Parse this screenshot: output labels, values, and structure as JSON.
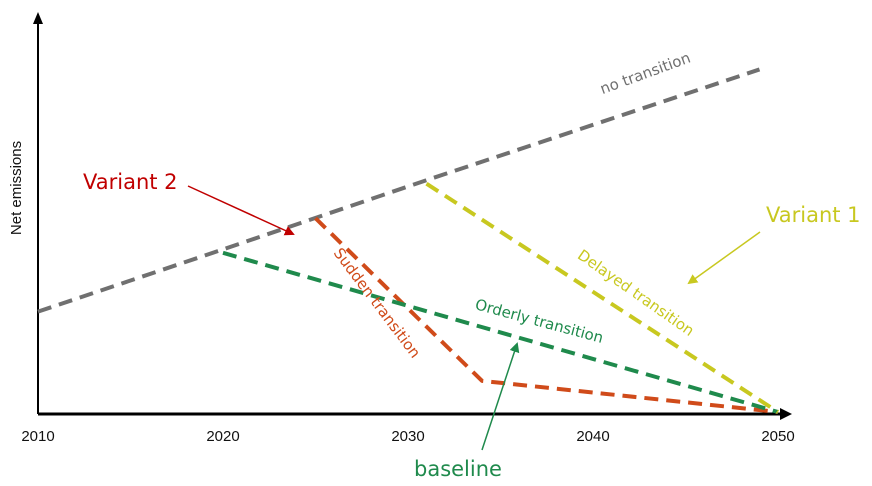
{
  "chart_data": {
    "type": "line",
    "ylabel": "Net emissions",
    "xlabel": "",
    "x_ticks": [
      2010,
      2020,
      2030,
      2040,
      2050
    ],
    "xlim": [
      2010,
      2050
    ],
    "ylim": [
      0,
      100
    ],
    "grid": false,
    "series": [
      {
        "label": "no transition",
        "color": "#707070",
        "points": [
          [
            2010,
            29
          ],
          [
            2020,
            47
          ],
          [
            2031,
            67
          ],
          [
            2049,
            99
          ]
        ]
      },
      {
        "label": "Sudden transition",
        "color": "#d04b1a",
        "points": [
          [
            2025,
            56
          ],
          [
            2034,
            9
          ],
          [
            2050,
            0
          ]
        ]
      },
      {
        "label": "Orderly transition",
        "color": "#1f8a4c",
        "points": [
          [
            2020,
            46
          ],
          [
            2050,
            0
          ]
        ]
      },
      {
        "label": "Delayed transition",
        "color": "#c8c820",
        "points": [
          [
            2031,
            66
          ],
          [
            2050,
            0
          ]
        ]
      }
    ],
    "annotations": [
      {
        "text": "Variant 2",
        "color": "#c00000"
      },
      {
        "text": "Variant 1",
        "color": "#c8c820"
      },
      {
        "text": "baseline",
        "color": "#1f8a4c"
      }
    ]
  }
}
